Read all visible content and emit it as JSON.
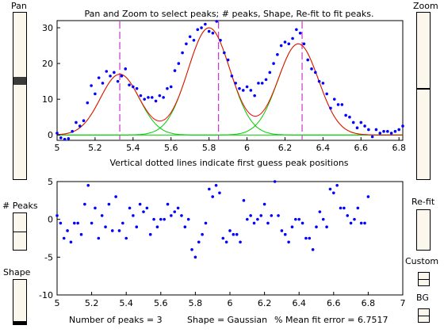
{
  "controls": {
    "pan_label": "Pan",
    "zoom_label": "Zoom",
    "peaks_label": "# Peaks",
    "shape_label": "Shape",
    "refit_label": "Re-fit",
    "custom_label": "Custom",
    "bg_label": "BG",
    "pan_level": 0.4,
    "zoom_level": 0.45
  },
  "status": {
    "peaks_text": "Number of peaks = 3",
    "shape_text": "Shape = Gaussian",
    "error_text": "% Mean fit error = 6.7517"
  },
  "chart_data": [
    {
      "type": "line",
      "title": "Pan and Zoom to select peaks; # peaks, Shape, Re-fit to fit peaks.",
      "xlabel": "Vertical dotted lines indicate first guess peak positions",
      "ylabel": "",
      "xlim": [
        5,
        6.82
      ],
      "ylim": [
        -1.5,
        32
      ],
      "xticks": [
        "5",
        "5.2",
        "5.4",
        "5.6",
        "5.8",
        "6",
        "6.2",
        "6.4",
        "6.6",
        "6.8"
      ],
      "yticks": [
        "0",
        "10",
        "20",
        "30"
      ],
      "grid": false,
      "guess_positions": [
        5.33,
        5.85,
        6.29
      ],
      "components": [
        {
          "center": 5.33,
          "height": 17,
          "width": 0.24
        },
        {
          "center": 5.8,
          "height": 30,
          "width": 0.26
        },
        {
          "center": 6.27,
          "height": 25.5,
          "width": 0.25
        }
      ],
      "series": [
        {
          "type": "scatter",
          "x": [
            5.0,
            5.02,
            5.04,
            5.06,
            5.08,
            5.1,
            5.12,
            5.14,
            5.16,
            5.18,
            5.2,
            5.22,
            5.24,
            5.26,
            5.28,
            5.3,
            5.32,
            5.34,
            5.36,
            5.38,
            5.4,
            5.42,
            5.44,
            5.46,
            5.48,
            5.5,
            5.52,
            5.54,
            5.56,
            5.58,
            5.6,
            5.62,
            5.64,
            5.66,
            5.68,
            5.7,
            5.72,
            5.74,
            5.76,
            5.78,
            5.8,
            5.82,
            5.84,
            5.86,
            5.88,
            5.9,
            5.92,
            5.94,
            5.96,
            5.98,
            6.0,
            6.02,
            6.04,
            6.06,
            6.08,
            6.1,
            6.12,
            6.14,
            6.16,
            6.18,
            6.2,
            6.22,
            6.24,
            6.26,
            6.28,
            6.3,
            6.32,
            6.34,
            6.36,
            6.38,
            6.4,
            6.42,
            6.44,
            6.46,
            6.48,
            6.5,
            6.52,
            6.54,
            6.56,
            6.58,
            6.6,
            6.62,
            6.64,
            6.66,
            6.68,
            6.7,
            6.72,
            6.74,
            6.76,
            6.78,
            6.8,
            6.82
          ],
          "y": [
            0.5,
            -0.8,
            -1.2,
            -1.0,
            1.0,
            3.5,
            2.5,
            4.0,
            9.0,
            13.8,
            11.5,
            16.0,
            14.5,
            17.8,
            16.5,
            17.5,
            15.0,
            16.5,
            18.5,
            14.0,
            13.5,
            13.0,
            11.0,
            10.0,
            10.5,
            10.5,
            9.5,
            11.0,
            10.5,
            13.0,
            13.5,
            18.0,
            20.0,
            23.0,
            25.5,
            27.5,
            26.5,
            29.5,
            30.0,
            31.0,
            29.0,
            28.5,
            31.8,
            26.5,
            23.0,
            21.0,
            16.5,
            14.5,
            13.0,
            12.5,
            13.5,
            12.5,
            11.0,
            14.5,
            14.5,
            15.5,
            17.5,
            20.0,
            22.5,
            25.0,
            26.0,
            25.5,
            27.0,
            29.5,
            28.5,
            25.5,
            21.0,
            18.5,
            17.5,
            15.0,
            14.5,
            11.5,
            7.5,
            10.0,
            8.5,
            8.5,
            5.5,
            5.0,
            3.5,
            2.0,
            3.5,
            2.5,
            1.5,
            -0.5,
            1.5,
            0.5,
            1.0,
            1.0,
            0.5,
            1.0,
            1.5,
            2.5
          ]
        },
        {
          "name": "fit",
          "type": "line"
        },
        {
          "name": "components",
          "type": "line"
        }
      ]
    },
    {
      "type": "scatter",
      "title": "",
      "xlabel": "",
      "ylabel": "",
      "xlim": [
        5,
        7
      ],
      "ylim": [
        -10,
        5
      ],
      "xticks": [
        "5",
        "5.2",
        "5.4",
        "5.6",
        "5.8",
        "6",
        "6.2",
        "6.4",
        "6.6",
        "6.8",
        "7"
      ],
      "yticks": [
        "5",
        "0",
        "-5",
        "-10"
      ],
      "grid": false,
      "x": [
        5.0,
        5.02,
        5.04,
        5.06,
        5.08,
        5.1,
        5.12,
        5.14,
        5.16,
        5.18,
        5.2,
        5.22,
        5.24,
        5.26,
        5.28,
        5.3,
        5.32,
        5.34,
        5.36,
        5.38,
        5.4,
        5.42,
        5.44,
        5.46,
        5.48,
        5.5,
        5.52,
        5.54,
        5.56,
        5.58,
        5.6,
        5.62,
        5.64,
        5.66,
        5.68,
        5.7,
        5.72,
        5.74,
        5.76,
        5.78,
        5.8,
        5.82,
        5.84,
        5.86,
        5.88,
        5.9,
        5.92,
        5.94,
        5.96,
        5.98,
        6.0,
        6.02,
        6.04,
        6.06,
        6.08,
        6.1,
        6.12,
        6.14,
        6.16,
        6.18,
        6.2,
        6.22,
        6.24,
        6.26,
        6.28,
        6.3,
        6.32,
        6.34,
        6.36,
        6.38,
        6.4,
        6.42,
        6.44,
        6.46,
        6.48,
        6.5,
        6.52,
        6.54,
        6.56,
        6.58,
        6.6,
        6.62,
        6.64,
        6.66,
        6.68,
        6.7,
        6.72,
        6.74,
        6.76,
        6.78,
        6.8
      ],
      "y": [
        0.5,
        -0.5,
        -2.5,
        -1.5,
        -3.0,
        -0.5,
        -0.5,
        -2.0,
        2.0,
        4.5,
        -0.5,
        1.5,
        -2.5,
        0.5,
        -1.0,
        2.0,
        -1.5,
        3.0,
        -1.5,
        -0.5,
        -2.5,
        1.5,
        0.5,
        -1.0,
        2.0,
        1.0,
        1.5,
        -2.0,
        0.0,
        -1.0,
        0.0,
        0.0,
        2.0,
        0.5,
        1.0,
        1.5,
        0.5,
        -1.0,
        0.0,
        -4.0,
        -5.0,
        -3.0,
        -2.0,
        -0.5,
        4.0,
        3.0,
        4.5,
        3.5,
        -2.5,
        -3.0,
        -1.5,
        -2.0,
        -2.0,
        -3.0,
        2.5,
        0.0,
        0.5,
        -0.5,
        0.0,
        0.5,
        2.0,
        -0.5,
        0.5,
        5.0,
        0.5,
        -1.5,
        -2.0,
        -3.0,
        -1.0,
        0.0,
        0.0,
        -0.5,
        -2.5,
        -2.5,
        -4.0,
        -1.0,
        1.0,
        0.0,
        -1.0,
        4.0,
        3.5,
        4.5,
        1.5,
        1.5,
        0.5,
        -0.5,
        0.0,
        1.5,
        -0.5,
        -0.5,
        3.0
      ]
    }
  ],
  "colors": {
    "points": "#0000ff",
    "fit": "#ff0000",
    "components": "#00cc00",
    "guess_lines": "#cc33cc"
  }
}
